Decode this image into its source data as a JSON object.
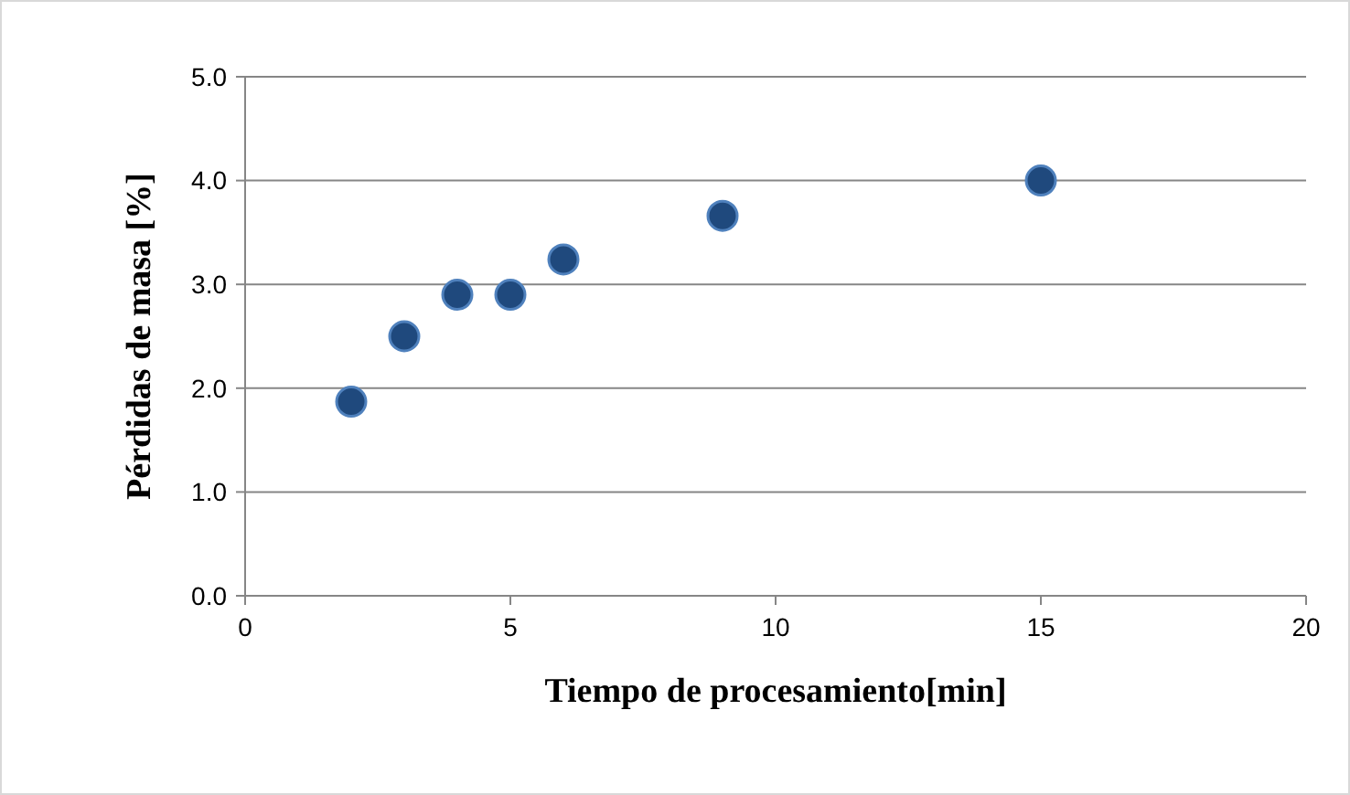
{
  "chart_data": {
    "type": "scatter",
    "xlabel": "Tiempo de procesamiento[min]",
    "ylabel": "Pérdidas de masa [%]",
    "x": [
      2,
      3,
      4,
      5,
      6,
      9,
      15
    ],
    "values": [
      1.87,
      2.5,
      2.9,
      2.9,
      3.24,
      3.66,
      4.0
    ],
    "color": "#1f497d",
    "marker": "circle",
    "xlim": [
      0,
      20
    ],
    "xticks": [
      0,
      5,
      10,
      15,
      20
    ],
    "ylim": [
      0,
      5
    ],
    "yticks": [
      {
        "value": 0,
        "label": "0.0"
      },
      {
        "value": 1,
        "label": "1.0"
      },
      {
        "value": 2,
        "label": "2.0"
      },
      {
        "value": 3,
        "label": "3.0"
      },
      {
        "value": 4,
        "label": "4.0"
      },
      {
        "value": 5,
        "label": "5.0"
      }
    ],
    "grid": "y"
  }
}
